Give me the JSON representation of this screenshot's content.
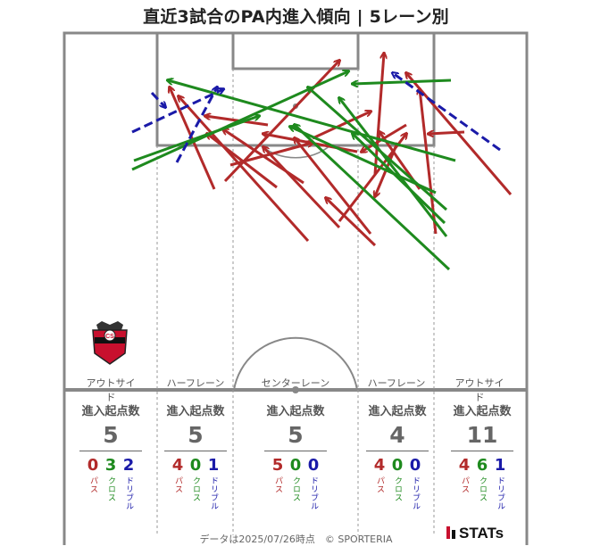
{
  "title": "直近3試合のPA内進入傾向 | 5レーン別",
  "lanes": [
    {
      "label": "アウトサイド",
      "header": "進入起点数",
      "total": "5",
      "pass": "0",
      "cross": "3",
      "dribble": "2"
    },
    {
      "label": "ハーフレーン",
      "header": "進入起点数",
      "total": "5",
      "pass": "4",
      "cross": "0",
      "dribble": "1"
    },
    {
      "label": "センターレーン",
      "header": "進入起点数",
      "total": "5",
      "pass": "5",
      "cross": "0",
      "dribble": "0"
    },
    {
      "label": "ハーフレーン",
      "header": "進入起点数",
      "total": "4",
      "pass": "4",
      "cross": "0",
      "dribble": "0"
    },
    {
      "label": "アウトサイド",
      "header": "進入起点数",
      "total": "11",
      "pass": "4",
      "cross": "6",
      "dribble": "1"
    }
  ],
  "legend_labels": {
    "pass": "パス",
    "cross": "クロス",
    "dribble": "ドリブル"
  },
  "colors": {
    "pass": "#b22a2a",
    "cross": "#1e8a1e",
    "dribble": "#1a1aa8",
    "lines": "#888888"
  },
  "footer": "データは2025/07/26時点　© SPORTERIA",
  "brand": "STATs",
  "crest_icon": "consadole-sapporo-crest",
  "chart_data": {
    "type": "arrow-map",
    "title": "直近3試合のPA内進入傾向 | 5レーン別",
    "series": [
      {
        "name": "パス",
        "count": 17
      },
      {
        "name": "クロス",
        "count": 9
      },
      {
        "name": "ドリブル",
        "count": 4
      }
    ]
  }
}
